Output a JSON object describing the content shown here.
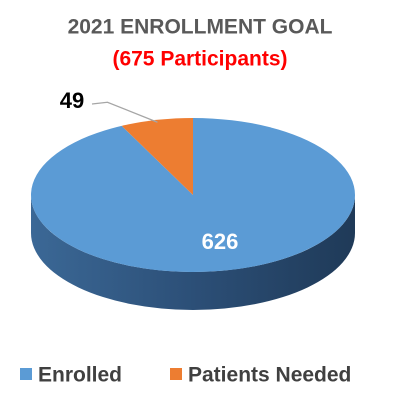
{
  "chart_data": {
    "type": "pie",
    "title": "2021 ENROLLMENT GOAL",
    "subtitle": "(675 Participants)",
    "categories": [
      "Enrolled",
      "Patients Needed"
    ],
    "values": [
      626,
      49
    ],
    "colors": [
      "#5b9bd5",
      "#ed7d31"
    ],
    "legend": "bottom"
  }
}
